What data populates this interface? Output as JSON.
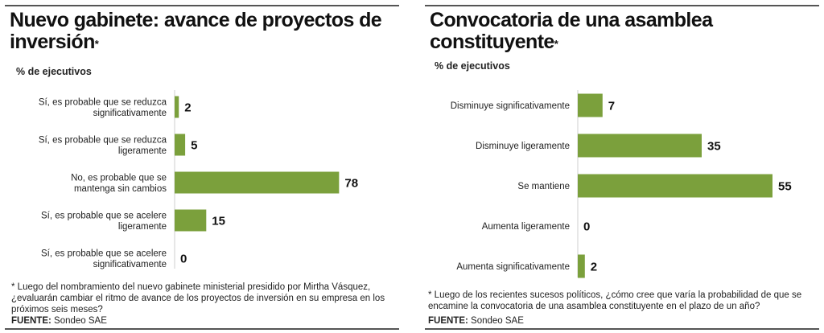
{
  "chart_data": [
    {
      "type": "bar",
      "orientation": "horizontal",
      "title": "Nuevo gabinete: avance de proyectos de inversión",
      "title_mark": "*",
      "unit_label": "% de ejecutivos",
      "categories": [
        [
          "Sí, es probable que se reduzca",
          "significativamente"
        ],
        [
          "Sí, es probable que se reduzca",
          "ligeramente"
        ],
        [
          "No, es probable que se",
          "mantenga sin cambios"
        ],
        [
          "Sí, es probable que se acelere",
          "ligeramente"
        ],
        [
          "Sí, es probable que se acelere",
          "significativamente"
        ]
      ],
      "values": [
        2,
        5,
        78,
        15,
        0
      ],
      "xlim": [
        0,
        100
      ],
      "grid": false,
      "bar_color": "#7ba03c",
      "footnote": "* Luego del nombramiento del nuevo gabinete ministerial presidido por Mirtha Vásquez, ¿evaluarán cambiar el ritmo de avance de los proyectos de inversión en su empresa en los próximos seis meses?",
      "source_label": "FUENTE:",
      "source": "Sondeo SAE"
    },
    {
      "type": "bar",
      "orientation": "horizontal",
      "title": "Convocatoria de una asamblea constituyente",
      "title_mark": "*",
      "unit_label": "% de ejecutivos",
      "categories": [
        [
          "Disminuye significativamente"
        ],
        [
          "Disminuye ligeramente"
        ],
        [
          "Se mantiene"
        ],
        [
          "Aumenta ligeramente"
        ],
        [
          "Aumenta significativamente"
        ]
      ],
      "values": [
        7,
        35,
        55,
        0,
        2
      ],
      "xlim": [
        0,
        100
      ],
      "grid": false,
      "bar_color": "#7ba03c",
      "footnote": "* Luego de los recientes sucesos políticos, ¿cómo cree que varía la probabilidad de que se encamine la convocatoria de una asamblea constituyente en el plazo de un año?",
      "source_label": "FUENTE:",
      "source": "Sondeo SAE"
    }
  ],
  "colors": {
    "bar": "#7ba03c",
    "axis": "#cfcfcf",
    "rule": "#555555"
  }
}
